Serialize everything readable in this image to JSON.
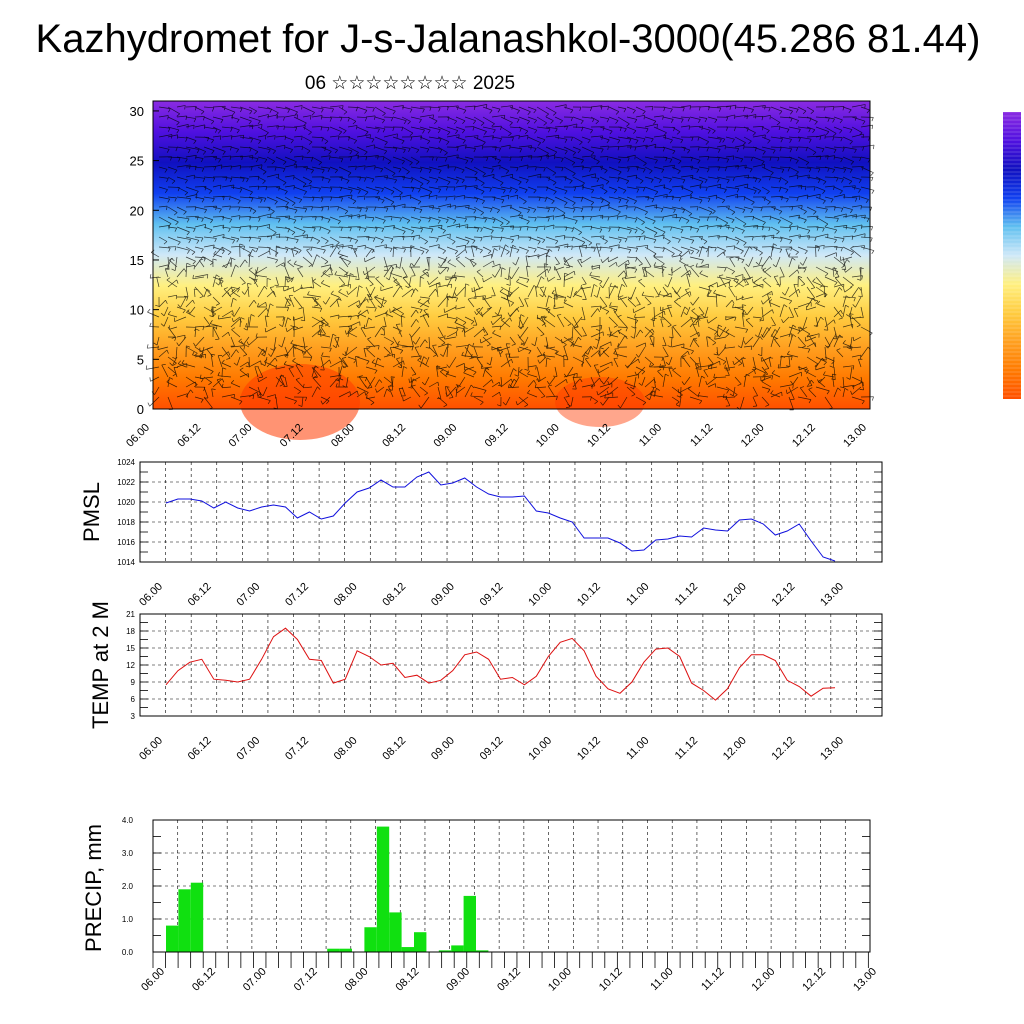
{
  "title": "Kazhydromet for J-s-Jalanashkol-3000(45.286 81.44)",
  "subtitle": "06 ☆☆☆☆☆☆☆☆ 2025",
  "colors": {
    "pmsl_line": "#1010dd",
    "temp_line": "#dd1010",
    "precip_bar": "#10e010",
    "wind_barb": "#000000"
  },
  "chart_data": [
    {
      "type": "heatmap",
      "title": "",
      "xlabel": "",
      "ylabel": "",
      "ylim": [
        0,
        31
      ],
      "yticks": [
        0,
        5,
        10,
        15,
        20,
        25,
        30
      ],
      "xticks": [
        "06.00",
        "06.12",
        "07.00",
        "07.12",
        "08.00",
        "08.12",
        "09.00",
        "09.12",
        "10.00",
        "10.12",
        "11.00",
        "11.12",
        "12.00",
        "12.12",
        "13.00"
      ],
      "description_layers": "filled temperature contours with wind barbs",
      "color_scale": [
        "#ff5000",
        "#ff7a00",
        "#ffa020",
        "#ffcc40",
        "#fff080",
        "#cfe8f8",
        "#60c0f0",
        "#1040f0",
        "#1010c0",
        "#5010e0",
        "#8a2be2"
      ]
    },
    {
      "type": "line",
      "ylabel": "PMSL",
      "ylim": [
        1014,
        1024
      ],
      "yticks": [
        1014,
        1016,
        1018,
        1020,
        1022,
        1024
      ],
      "xticks": [
        "06.00",
        "06.12",
        "07.00",
        "07.12",
        "08.00",
        "08.12",
        "09.00",
        "09.12",
        "10.00",
        "10.12",
        "11.00",
        "11.12",
        "12.00",
        "12.12",
        "13.00"
      ],
      "x": [
        0,
        3,
        6,
        9,
        12,
        15,
        18,
        21,
        24,
        27,
        30,
        33,
        36,
        39,
        42,
        45,
        48,
        51,
        54,
        57,
        60,
        63,
        66,
        69,
        72,
        75,
        78,
        81,
        84,
        87,
        90,
        93,
        96,
        99,
        102,
        105,
        108,
        111,
        114,
        117,
        120,
        123,
        126,
        129,
        132,
        135,
        138,
        141,
        144,
        147,
        150,
        153,
        156,
        159,
        162,
        165,
        168
      ],
      "series": [
        {
          "values": [
            1019.9,
            1020.3,
            1020.3,
            1020.1,
            1019.4,
            1020.0,
            1019.4,
            1019.1,
            1019.5,
            1019.7,
            1019.5,
            1018.4,
            1019.0,
            1018.3,
            1018.6,
            1019.9,
            1021.0,
            1021.4,
            1022.2,
            1021.5,
            1021.5,
            1022.5,
            1023.0,
            1021.7,
            1021.9,
            1022.4,
            1021.5,
            1020.8,
            1020.5,
            1020.5,
            1020.6,
            1019.1,
            1018.9,
            1018.4,
            1018.0,
            1016.4,
            1016.4,
            1016.4,
            1015.9,
            1015.1,
            1015.2,
            1016.2,
            1016.3,
            1016.6,
            1016.5,
            1017.4,
            1017.2,
            1017.1,
            1018.2,
            1018.3,
            1017.8,
            1016.7,
            1017.1,
            1017.8,
            1016.1,
            1014.5,
            1014.1
          ]
        }
      ]
    },
    {
      "type": "line",
      "ylabel": "TEMP at 2 M",
      "ylim": [
        3,
        21
      ],
      "yticks": [
        3,
        6,
        9,
        12,
        15,
        18,
        21
      ],
      "xticks": [
        "06.00",
        "06.12",
        "07.00",
        "07.12",
        "08.00",
        "08.12",
        "09.00",
        "09.12",
        "10.00",
        "10.12",
        "11.00",
        "11.12",
        "12.00",
        "12.12",
        "13.00"
      ],
      "x": [
        0,
        3,
        6,
        9,
        12,
        15,
        18,
        21,
        24,
        27,
        30,
        33,
        36,
        39,
        42,
        45,
        48,
        51,
        54,
        57,
        60,
        63,
        66,
        69,
        72,
        75,
        78,
        81,
        84,
        87,
        90,
        93,
        96,
        99,
        102,
        105,
        108,
        111,
        114,
        117,
        120,
        123,
        126,
        129,
        132,
        135,
        138,
        141,
        144,
        147,
        150,
        153,
        156,
        159,
        162,
        165,
        168
      ],
      "series": [
        {
          "values": [
            8.5,
            11.0,
            12.5,
            13.0,
            9.5,
            9.3,
            9.0,
            9.5,
            13.0,
            17.0,
            18.5,
            16.5,
            13.0,
            12.8,
            8.8,
            9.5,
            14.5,
            13.5,
            12.0,
            12.3,
            9.8,
            10.2,
            8.8,
            9.3,
            11.0,
            13.8,
            14.3,
            13.0,
            9.5,
            9.8,
            8.5,
            10.0,
            13.5,
            16.0,
            16.7,
            14.5,
            10.0,
            7.8,
            7.0,
            9.0,
            12.5,
            14.8,
            15.0,
            13.5,
            8.8,
            7.5,
            5.8,
            7.8,
            11.5,
            13.8,
            13.8,
            12.8,
            9.3,
            8.2,
            6.5,
            7.9,
            8.0
          ]
        }
      ]
    },
    {
      "type": "bar",
      "ylabel": "PRECIP, mm",
      "ylim": [
        0,
        4
      ],
      "yticks": [
        "0.0",
        "1.0",
        "2.0",
        "3.0",
        "4.0"
      ],
      "xticks": [
        "06.00",
        "06.12",
        "07.00",
        "07.12",
        "08.00",
        "08.12",
        "09.00",
        "09.12",
        "10.00",
        "10.12",
        "11.00",
        "11.12",
        "12.00",
        "12.12",
        "13.00"
      ],
      "x": [
        0,
        3,
        6,
        9,
        12,
        15,
        18,
        21,
        24,
        27,
        30,
        33,
        36,
        39,
        42,
        45,
        48,
        51,
        54,
        57,
        60,
        63,
        66,
        69,
        72,
        75,
        78,
        81,
        84,
        87,
        90,
        93,
        96,
        99,
        102,
        105,
        108,
        111,
        114,
        117,
        120,
        123,
        126,
        129,
        132,
        135,
        138,
        141,
        144,
        147,
        150,
        153,
        156,
        159,
        162,
        165,
        168
      ],
      "values": [
        0.8,
        1.9,
        2.1,
        0,
        0,
        0,
        0,
        0,
        0,
        0,
        0,
        0,
        0,
        0.1,
        0.1,
        0,
        0.75,
        3.8,
        1.2,
        0.15,
        0.6,
        0,
        0.05,
        0.2,
        1.7,
        0.05,
        0,
        0,
        0,
        0,
        0,
        0,
        0,
        0,
        0,
        0,
        0,
        0,
        0,
        0,
        0,
        0,
        0,
        0,
        0,
        0,
        0,
        0,
        0,
        0,
        0,
        0,
        0,
        0,
        0,
        0,
        0
      ]
    }
  ]
}
